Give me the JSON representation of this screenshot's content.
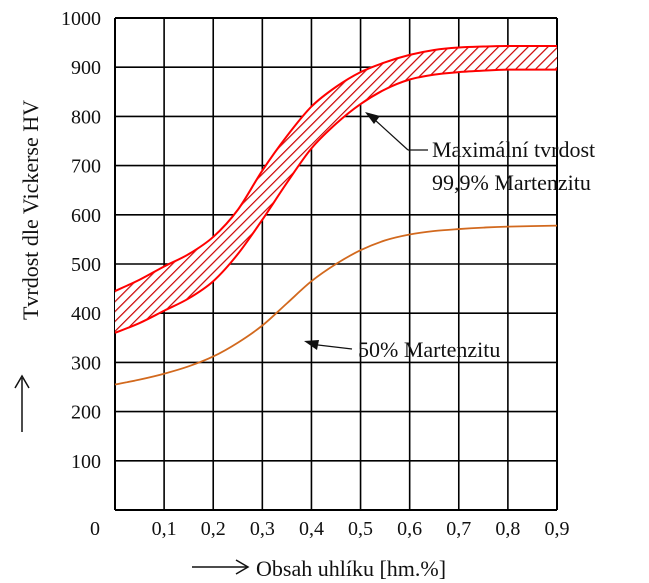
{
  "chart_data": {
    "type": "line",
    "xlabel": "Obsah uhlíku [hm.%]",
    "ylabel": "Tvrdost dle Vickerse HV",
    "xlim": [
      0,
      0.9
    ],
    "ylim": [
      0,
      1000
    ],
    "x_ticks": [
      "0",
      "0,1",
      "0,2",
      "0,3",
      "0,4",
      "0,5",
      "0,6",
      "0,7",
      "0,8",
      "0,9"
    ],
    "y_ticks": [
      "100",
      "200",
      "300",
      "400",
      "500",
      "600",
      "700",
      "800",
      "900",
      "1000"
    ],
    "grid": true,
    "series": [
      {
        "name": "Maximální tvrdost 99,9% Martenzitu",
        "kind": "band",
        "x": [
          0,
          0.05,
          0.1,
          0.15,
          0.2,
          0.25,
          0.3,
          0.35,
          0.4,
          0.45,
          0.5,
          0.55,
          0.6,
          0.65,
          0.7,
          0.75,
          0.8,
          0.9
        ],
        "upper": [
          445,
          468,
          495,
          520,
          555,
          610,
          690,
          760,
          820,
          860,
          890,
          910,
          925,
          935,
          940,
          942,
          943,
          943
        ],
        "lower": [
          360,
          380,
          405,
          430,
          465,
          520,
          590,
          665,
          735,
          785,
          825,
          855,
          875,
          885,
          890,
          893,
          895,
          895
        ]
      },
      {
        "name": "50% Martenzitu",
        "kind": "line",
        "x": [
          0,
          0.05,
          0.1,
          0.15,
          0.2,
          0.25,
          0.3,
          0.35,
          0.4,
          0.45,
          0.5,
          0.55,
          0.6,
          0.65,
          0.7,
          0.75,
          0.8,
          0.9
        ],
        "values": [
          255,
          265,
          277,
          292,
          312,
          340,
          375,
          420,
          465,
          500,
          528,
          548,
          560,
          567,
          571,
          574,
          576,
          578
        ]
      }
    ],
    "annotations": [
      {
        "lines": [
          "Maximální tvrdost",
          "99,9% Martenzitu"
        ],
        "points_to_x": 0.41,
        "points_to_y": 820
      },
      {
        "lines": [
          "50% Martenzitu"
        ],
        "points_to_x": 0.37,
        "points_to_y": 435
      }
    ],
    "colors": {
      "band": "#ff0000",
      "band_hatch": "#cc0000",
      "line": "#d2691e",
      "grid": "#000000"
    }
  }
}
